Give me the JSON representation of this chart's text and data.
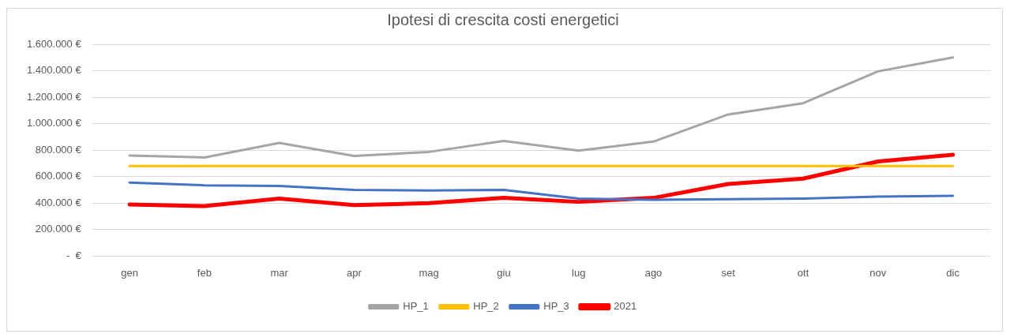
{
  "chart_data": {
    "type": "line",
    "title": "Ipotesi di crescita costi energetici",
    "categories": [
      "gen",
      "feb",
      "mar",
      "apr",
      "mag",
      "giu",
      "lug",
      "ago",
      "set",
      "ott",
      "nov",
      "dic"
    ],
    "series": [
      {
        "name": "HP_1",
        "color": "#a5a5a5",
        "values": [
          760000,
          745000,
          855000,
          757000,
          787000,
          870000,
          797000,
          865000,
          1070000,
          1155000,
          1395000,
          1500000
        ]
      },
      {
        "name": "HP_2",
        "color": "#ffc000",
        "values": [
          680000,
          680000,
          680000,
          680000,
          680000,
          680000,
          680000,
          680000,
          680000,
          680000,
          680000,
          680000
        ]
      },
      {
        "name": "HP_3",
        "color": "#4472c4",
        "values": [
          555000,
          535000,
          530000,
          500000,
          495000,
          500000,
          435000,
          425000,
          430000,
          435000,
          450000,
          455000
        ]
      },
      {
        "name": "2021",
        "color": "#ff0000",
        "values": [
          390000,
          378000,
          435000,
          385000,
          400000,
          440000,
          410000,
          440000,
          545000,
          585000,
          715000,
          765000
        ]
      }
    ],
    "ylim": [
      0,
      1600000
    ],
    "yticks": [
      {
        "value": 0,
        "label": "-  €"
      },
      {
        "value": 200000,
        "label": "200.000 €"
      },
      {
        "value": 400000,
        "label": "400.000 €"
      },
      {
        "value": 600000,
        "label": "600.000 €"
      },
      {
        "value": 800000,
        "label": "800.000 €"
      },
      {
        "value": 1000000,
        "label": "1.000.000 €"
      },
      {
        "value": 1200000,
        "label": "1.200.000 €"
      },
      {
        "value": 1400000,
        "label": "1.400.000 €"
      },
      {
        "value": 1600000,
        "label": "1.600.000 €"
      }
    ],
    "grid": "y",
    "legend": "bottom",
    "marker": "none",
    "line_style": "solid"
  }
}
